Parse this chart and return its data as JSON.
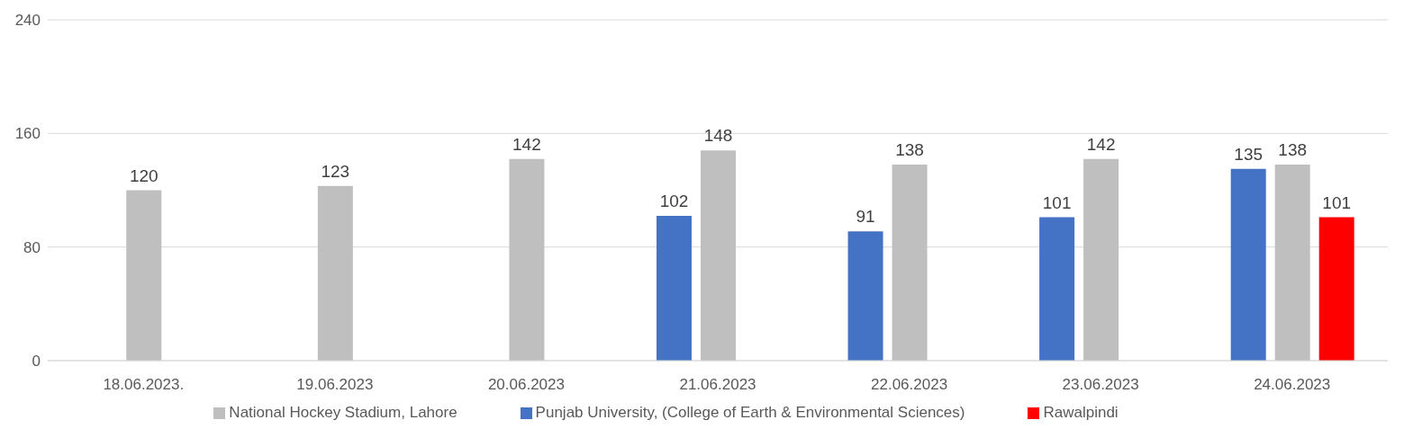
{
  "chart_data": {
    "type": "bar",
    "categories": [
      "18.06.2023.",
      "19.06.2023",
      "20.06.2023",
      "21.06.2023",
      "22.06.2023",
      "23.06.2023",
      "24.06.2023"
    ],
    "series": [
      {
        "name": "Punjab University, (College of Earth & Environmental Sciences)",
        "color": "#4472c4",
        "values": [
          null,
          null,
          null,
          102,
          91,
          101,
          135
        ]
      },
      {
        "name": "National Hockey Stadium, Lahore",
        "color": "#bfbfbf",
        "values": [
          120,
          123,
          142,
          148,
          138,
          142,
          138
        ]
      },
      {
        "name": "Rawalpindi",
        "color": "#ff0000",
        "values": [
          null,
          null,
          null,
          null,
          null,
          null,
          101
        ]
      }
    ],
    "ylim": [
      0,
      240
    ],
    "yticks": [
      0,
      80,
      160,
      240
    ],
    "grid": "y",
    "legend": "bottom",
    "data_labels": true
  }
}
